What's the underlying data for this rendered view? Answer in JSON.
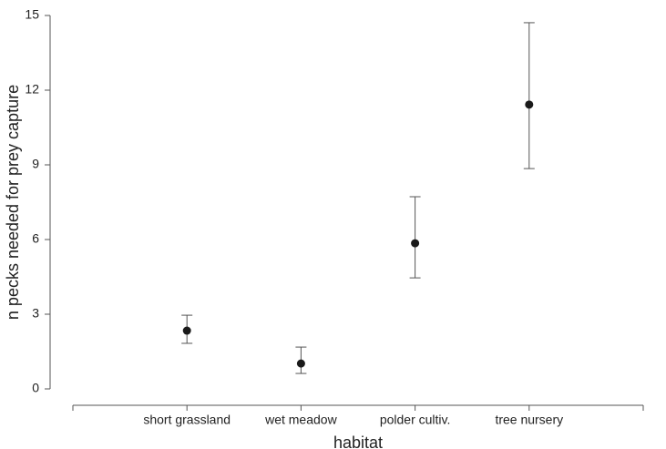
{
  "chart_data": {
    "type": "errorbar",
    "x_label": "habitat",
    "y_label": "n pecks needed for prey capture",
    "categories": [
      "short grassland",
      "wet meadow",
      "polder cultiv.",
      "tree nursery"
    ],
    "series": [
      {
        "color": "#1a1a1a",
        "values": [
          2.34,
          1.02,
          5.85,
          11.42
        ],
        "lower": [
          1.83,
          0.62,
          4.46,
          8.85
        ],
        "upper": [
          2.96,
          1.68,
          7.72,
          14.71
        ]
      }
    ],
    "ylim": [
      0,
      15
    ],
    "yticks": [
      0,
      3,
      6,
      9,
      12,
      15
    ]
  }
}
